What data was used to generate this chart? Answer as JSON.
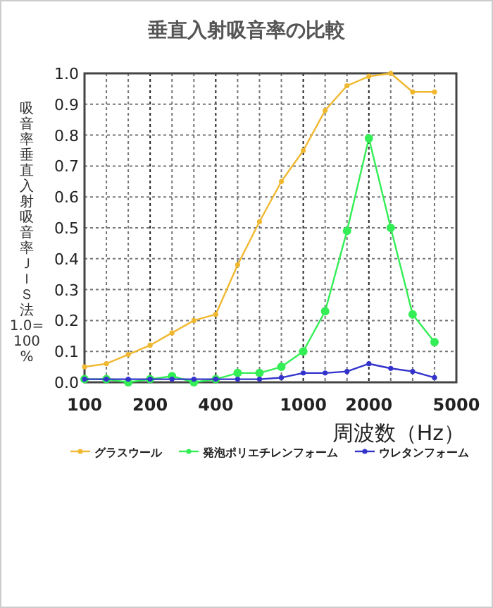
{
  "chart_data": {
    "type": "line",
    "title": "垂直入射吸音率の比較",
    "xlabel": "周波数（Hz）",
    "ylabel": "吸音率垂直入射吸音率ＪＩＳ法1.0=100%",
    "categories": [
      "100",
      null,
      null,
      "200",
      null,
      null,
      "400",
      null,
      null,
      null,
      "1000",
      null,
      null,
      "2000",
      null,
      null,
      null,
      "5000"
    ],
    "ylim": [
      0,
      1
    ],
    "yticks": [
      {
        "value": 0,
        "label": "0.0"
      },
      {
        "value": 0.1,
        "label": "0.1"
      },
      {
        "value": 0.2,
        "label": "0.2"
      },
      {
        "value": 0.3,
        "label": "0.3"
      },
      {
        "value": 0.4,
        "label": "0.4"
      },
      {
        "value": 0.5,
        "label": "0.5"
      },
      {
        "value": 0.6,
        "label": "0.6"
      },
      {
        "value": 0.7,
        "label": "0.7"
      },
      {
        "value": 0.8,
        "label": "0.8"
      },
      {
        "value": 0.9,
        "label": "0.9"
      },
      {
        "value": 1,
        "label": "1.0"
      }
    ],
    "grid": true,
    "legend": "bottom",
    "marker": "circle",
    "series": [
      {
        "name": "グラスウール",
        "color": "#f0b830",
        "values": [
          0.05,
          0.06,
          0.09,
          0.12,
          0.16,
          0.2,
          0.22,
          0.38,
          0.52,
          0.65,
          0.75,
          0.88,
          0.96,
          0.99,
          1.0,
          0.94,
          0.94,
          null
        ]
      },
      {
        "name": "発泡ポリエチレンフォーム",
        "color": "#33ee55",
        "values": [
          0.01,
          0.01,
          0.0,
          0.01,
          0.02,
          0.0,
          0.01,
          0.03,
          0.03,
          0.05,
          0.1,
          0.23,
          0.49,
          0.79,
          0.5,
          0.22,
          0.13,
          null
        ]
      },
      {
        "name": "ウレタンフォーム",
        "color": "#3333cc",
        "values": [
          0.01,
          0.01,
          0.01,
          0.01,
          0.01,
          0.01,
          0.01,
          0.01,
          0.01,
          0.015,
          0.03,
          0.03,
          0.035,
          0.06,
          0.045,
          0.035,
          0.015,
          null
        ]
      }
    ]
  }
}
